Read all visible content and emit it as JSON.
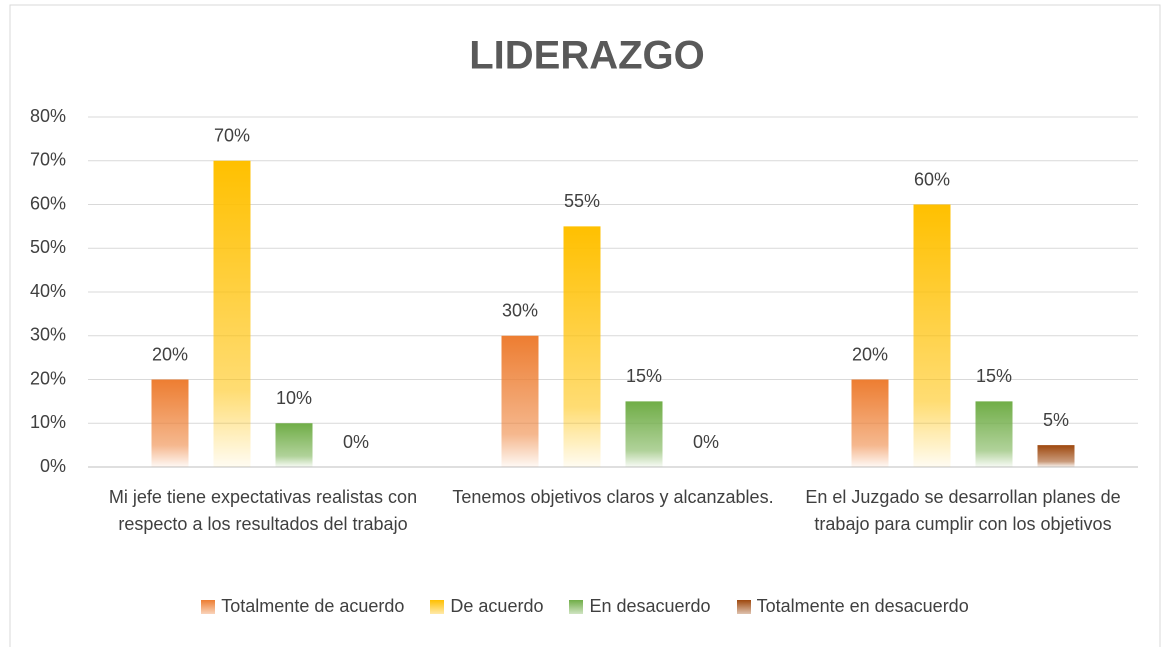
{
  "chart_data": {
    "type": "bar",
    "title": "LIDERAZGO",
    "categories": [
      "Mi jefe tiene expectativas realistas con respecto a los resultados del trabajo",
      "Tenemos objetivos claros y alcanzables.",
      "En el Juzgado se desarrollan planes de trabajo para cumplir con los objetivos"
    ],
    "series": [
      {
        "name": "Totalmente de acuerdo",
        "color": "#ed7d31",
        "values": [
          20,
          30,
          20
        ],
        "value_labels": [
          "20%",
          "30%",
          "20%"
        ]
      },
      {
        "name": "De acuerdo",
        "color": "#ffc000",
        "values": [
          70,
          55,
          60
        ],
        "value_labels": [
          "70%",
          "55%",
          "60%"
        ]
      },
      {
        "name": "En desacuerdo",
        "color": "#70ad47",
        "values": [
          10,
          15,
          15
        ],
        "value_labels": [
          "10%",
          "15%",
          "15%"
        ]
      },
      {
        "name": "Totalmente en desacuerdo",
        "color": "#9e480e",
        "values": [
          0,
          0,
          5
        ],
        "value_labels": [
          "0%",
          "0%",
          "5%"
        ]
      }
    ],
    "ylim": [
      0,
      80
    ],
    "yticks": [
      {
        "value": 0,
        "label": "0%"
      },
      {
        "value": 10,
        "label": "10%"
      },
      {
        "value": 20,
        "label": "20%"
      },
      {
        "value": 30,
        "label": "30%"
      },
      {
        "value": 40,
        "label": "40%"
      },
      {
        "value": 50,
        "label": "50%"
      },
      {
        "value": 60,
        "label": "60%"
      },
      {
        "value": 70,
        "label": "70%"
      },
      {
        "value": 80,
        "label": "80%"
      }
    ],
    "grid": true,
    "legend": "bottom"
  }
}
